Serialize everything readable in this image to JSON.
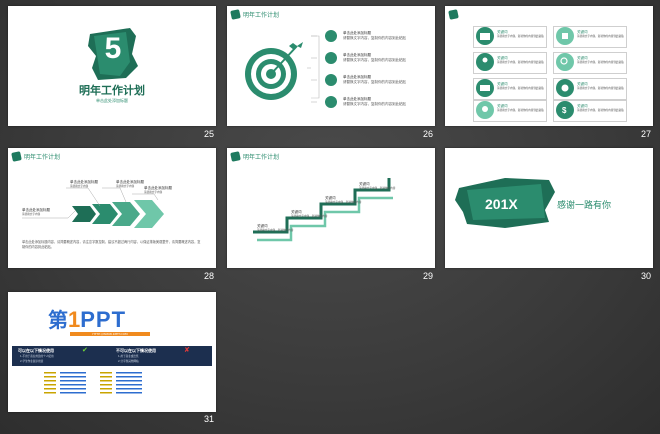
{
  "slides": [
    {
      "number": "25",
      "big_number": "5",
      "title": "明年工作计划",
      "subtitle": "单击此处添加标题"
    },
    {
      "number": "26",
      "header": "明年工作计划",
      "item_title": "单击此处添加标题",
      "item_desc": "请替换文字内容，复制你的内容到此粘贴"
    },
    {
      "number": "27",
      "item_title": "关键词",
      "item_desc": "请替换文字内容，复制你的内容到此粘贴"
    },
    {
      "number": "28",
      "header": "明年工作计划",
      "item_title": "单击此处添加标题",
      "item_desc": "请替换文字内容",
      "body": "单击此处添加标题内容，请简要概述内容，请注意字数控制，建议不超过两行内容，以保证排版美观整齐，请简要概述内容，复制你的内容到此粘贴。"
    },
    {
      "number": "29",
      "header": "明年工作计划",
      "item_title": "关键词",
      "item_desc": "请替换文字内容，复制你的内容"
    },
    {
      "number": "30",
      "year": "201X",
      "thanks": "感谢一路有你"
    },
    {
      "number": "31",
      "brand_left": "第",
      "brand_one": "1",
      "brand_ppt": "PPT",
      "url": "HTTP://WWW.1PPT.COM",
      "panel_left_title": "可以在以下情况使用",
      "panel_right_title": "不可以在以下情况使用",
      "panel_left_lines": [
        "1.不用于商业用途的个人使用",
        "2.学生作业展示用途"
      ],
      "panel_right_lines": [
        "1.用于商业或出售",
        "2.分享到其他网站"
      ]
    }
  ],
  "colors": {
    "accent": "#2b8c6e",
    "dark": "#1e6e56",
    "light": "#6fc7a9",
    "navy": "#1c2f4f",
    "blue": "#2d6dcf",
    "orange": "#f08a1e"
  }
}
